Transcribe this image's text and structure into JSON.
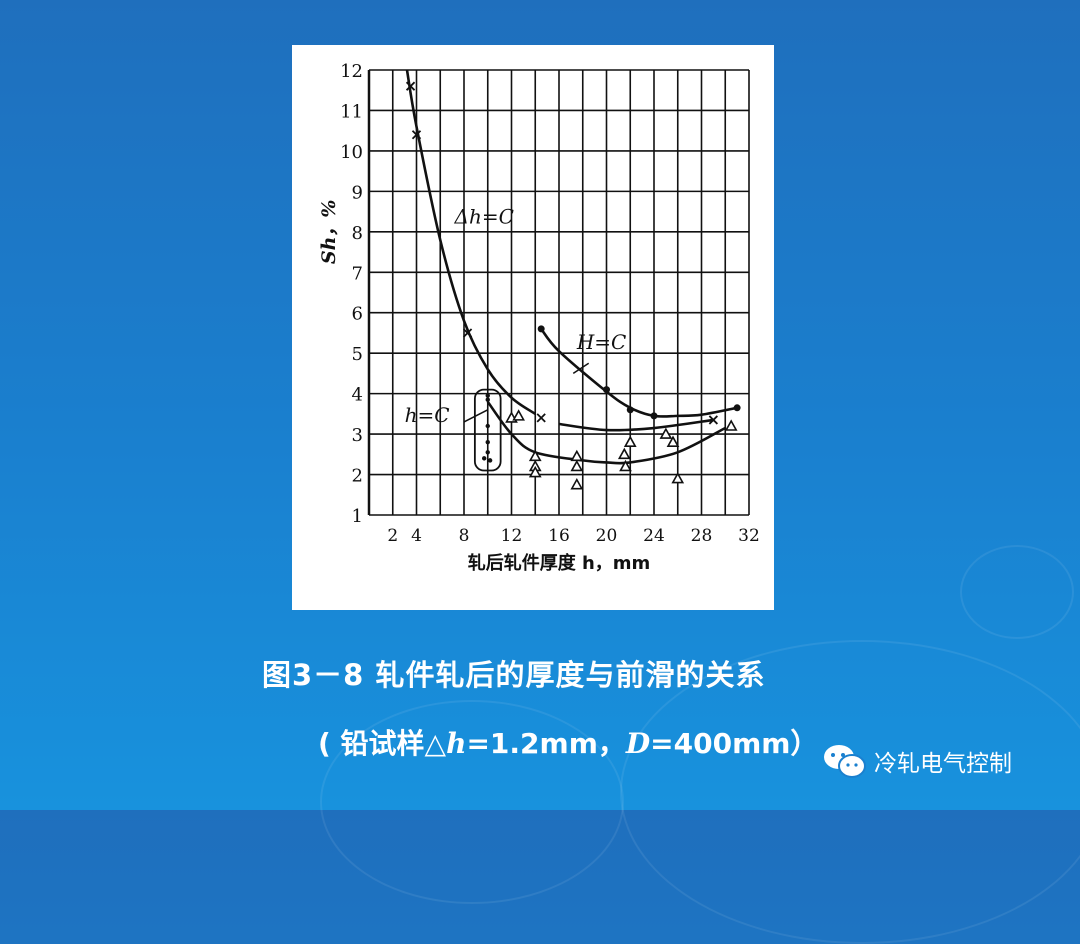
{
  "caption": {
    "title": "图3－8 轧件轧后的厚度与前滑的关系",
    "note_prefix": "( 铅试样△",
    "note_h": "h",
    "note_mid": "=1.2mm，",
    "note_D": "D",
    "note_suffix": "=400mm）"
  },
  "watermark": {
    "icon": "wechat-icon",
    "text": "冷轧电气控制"
  },
  "colors": {
    "background": "#1a80cf",
    "figure_bg": "#ffffff",
    "ink": "#111111"
  },
  "chart_data": {
    "type": "line",
    "xlabel": "轧后轧件厚度 h，mm",
    "ylabel": "Sh，%",
    "xlim": [
      0,
      32
    ],
    "ylim": [
      1,
      12
    ],
    "x_ticks": [
      2,
      4,
      8,
      12,
      16,
      20,
      24,
      28,
      32
    ],
    "y_ticks": [
      1,
      2,
      3,
      4,
      5,
      6,
      7,
      8,
      9,
      10,
      11,
      12
    ],
    "grid": true,
    "series": [
      {
        "name": "Δh=C",
        "marker": "cross",
        "curve": [
          [
            3.2,
            12
          ],
          [
            4,
            10.6
          ],
          [
            6,
            7.8
          ],
          [
            8,
            5.8
          ],
          [
            10,
            4.6
          ],
          [
            12,
            3.9
          ],
          [
            14,
            3.5
          ]
        ],
        "curve2": [
          [
            16,
            3.25
          ],
          [
            20,
            3.1
          ],
          [
            24,
            3.15
          ],
          [
            29,
            3.35
          ]
        ],
        "points": [
          [
            3.5,
            11.6
          ],
          [
            4,
            10.4
          ],
          [
            8.3,
            5.5
          ],
          [
            14.5,
            3.4
          ],
          [
            29,
            3.35
          ]
        ]
      },
      {
        "name": "H=C",
        "marker": "dot",
        "curve": [
          [
            14.5,
            5.6
          ],
          [
            16,
            5.05
          ],
          [
            20,
            4.05
          ],
          [
            22,
            3.65
          ],
          [
            24,
            3.45
          ],
          [
            26,
            3.45
          ],
          [
            28,
            3.48
          ],
          [
            31,
            3.65
          ]
        ],
        "points": [
          [
            14.5,
            5.6
          ],
          [
            20,
            4.1
          ],
          [
            22,
            3.6
          ],
          [
            24,
            3.45
          ],
          [
            31,
            3.65
          ]
        ]
      },
      {
        "name": "h=C",
        "marker": "triangle",
        "curve": [
          [
            10,
            3.8
          ],
          [
            12,
            3.0
          ],
          [
            14,
            2.55
          ],
          [
            18,
            2.35
          ],
          [
            20,
            2.3
          ],
          [
            22,
            2.3
          ],
          [
            26,
            2.55
          ],
          [
            30,
            3.15
          ]
        ],
        "points": [
          [
            12,
            3.4
          ],
          [
            12.6,
            3.45
          ],
          [
            14,
            2.45
          ],
          [
            14,
            2.2
          ],
          [
            14,
            2.05
          ],
          [
            17.5,
            2.45
          ],
          [
            17.5,
            2.2
          ],
          [
            17.5,
            1.75
          ],
          [
            21.5,
            2.5
          ],
          [
            22,
            2.8
          ],
          [
            21.6,
            2.2
          ],
          [
            25,
            3.0
          ],
          [
            25.6,
            2.8
          ],
          [
            26,
            1.9
          ],
          [
            30.5,
            3.2
          ]
        ],
        "group_points": [
          [
            10,
            3.95
          ],
          [
            10,
            3.85
          ],
          [
            10,
            3.2
          ],
          [
            10,
            2.8
          ],
          [
            10,
            2.55
          ],
          [
            9.7,
            2.4
          ],
          [
            10.2,
            2.35
          ]
        ]
      }
    ],
    "annotations": [
      "Δh=C",
      "H=C",
      "h=C"
    ]
  }
}
